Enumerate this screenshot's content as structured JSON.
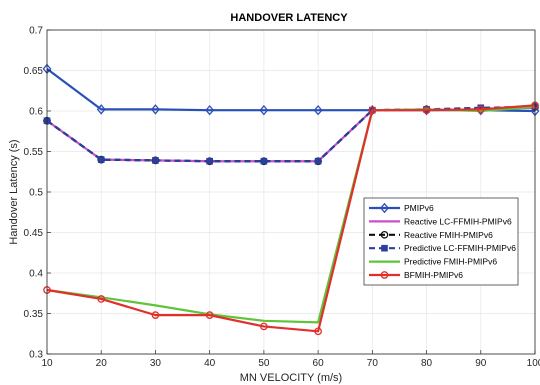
{
  "chart_data": {
    "type": "line",
    "title": "HANDOVER LATENCY",
    "xlabel": "MN VELOCITY (m/s)",
    "ylabel": "Handover Latency (s)",
    "xlim": [
      10,
      100
    ],
    "ylim": [
      0.3,
      0.7
    ],
    "xticks": [
      "10",
      "20",
      "30",
      "40",
      "50",
      "60",
      "70",
      "80",
      "90",
      "100"
    ],
    "yticks": [
      "0.3",
      "0.35",
      "0.4",
      "0.45",
      "0.5",
      "0.55",
      "0.6",
      "0.65",
      "0.7"
    ],
    "grid": true,
    "legend_position": "right",
    "x": [
      10,
      20,
      30,
      40,
      50,
      60,
      70,
      80,
      90,
      100
    ],
    "series": [
      {
        "name": "PMIPv6",
        "color": "#2b4fb8",
        "style": "solid",
        "marker": "diamond",
        "values": [
          0.652,
          0.602,
          0.602,
          0.601,
          0.601,
          0.601,
          0.601,
          0.601,
          0.601,
          0.6
        ]
      },
      {
        "name": "Reactive LC-FFMIH-PMIPv6",
        "color": "#c84fc8",
        "style": "solid",
        "marker": "none",
        "values": [
          0.588,
          0.54,
          0.539,
          0.538,
          0.538,
          0.538,
          0.601,
          0.601,
          0.602,
          0.604
        ]
      },
      {
        "name": "Reactive FMIH-PMIPv6",
        "color": "#111111",
        "style": "dashed",
        "marker": "circle",
        "values": [
          0.588,
          0.54,
          0.539,
          0.538,
          0.538,
          0.538,
          0.601,
          0.602,
          0.603,
          0.605
        ]
      },
      {
        "name": "Predictive LC-FFMIH-PMIPv6",
        "color": "#2b3f9c",
        "style": "dashed",
        "marker": "square",
        "values": [
          0.588,
          0.54,
          0.539,
          0.538,
          0.538,
          0.538,
          0.601,
          0.602,
          0.604,
          0.605
        ]
      },
      {
        "name": "Predictive FMIH-PMIPv6",
        "color": "#5fc43a",
        "style": "solid",
        "marker": "none",
        "values": [
          0.379,
          0.37,
          0.36,
          0.349,
          0.341,
          0.339,
          0.601,
          0.602,
          0.6,
          0.605
        ]
      },
      {
        "name": "BFMIH-PMIPv6",
        "color": "#e0302c",
        "style": "solid",
        "marker": "circle",
        "values": [
          0.379,
          0.368,
          0.348,
          0.348,
          0.334,
          0.328,
          0.601,
          0.601,
          0.602,
          0.607
        ]
      }
    ]
  }
}
